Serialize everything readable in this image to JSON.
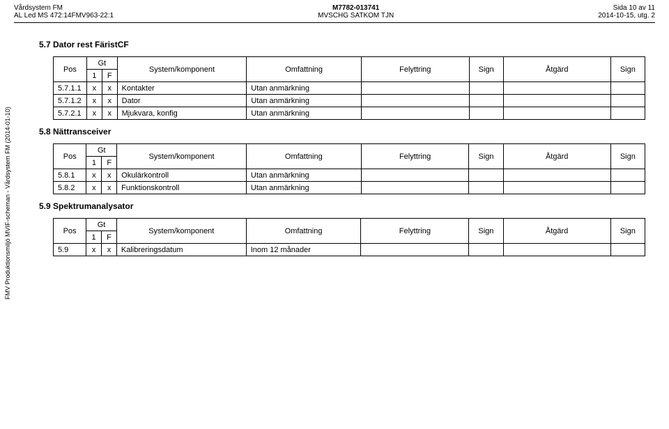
{
  "header": {
    "left1": "Vårdsystem FM",
    "left2": "AL Led MS 472:14FMV963-22:1",
    "center1": "M7782-013741",
    "center2": "MVSCHG SATKOM TJN",
    "right1": "Sida 10 av 11",
    "right2": "2014-10-15, utg. 2"
  },
  "sideText": "FMV Produktionsmiljö MVIF-scheman - Vårdsystem FM (2014-01-10)",
  "columns": {
    "pos": "Pos",
    "gt": "Gt",
    "gt1": "1",
    "gtF": "F",
    "sys": "System/komponent",
    "omf": "Omfattning",
    "fel": "Felyttring",
    "sign": "Sign",
    "atg": "Åtgärd",
    "sign2": "Sign"
  },
  "sections": [
    {
      "title": "5.7 Dator rest FäristCF",
      "rows": [
        {
          "pos": "5.7.1.1",
          "c1": "x",
          "cF": "x",
          "sys": "Kontakter",
          "omf": "Utan anmärkning",
          "fel": "",
          "sign": "",
          "atg": "",
          "sign2": ""
        },
        {
          "pos": "5.7.1.2",
          "c1": "x",
          "cF": "x",
          "sys": "Dator",
          "omf": "Utan anmärkning",
          "fel": "",
          "sign": "",
          "atg": "",
          "sign2": ""
        },
        {
          "pos": "5.7.2.1",
          "c1": "x",
          "cF": "x",
          "sys": "Mjukvara, konfig",
          "omf": "Utan anmärkning",
          "fel": "",
          "sign": "",
          "atg": "",
          "sign2": ""
        }
      ]
    },
    {
      "title": "5.8 Nättransceiver",
      "rows": [
        {
          "pos": "5.8.1",
          "c1": "x",
          "cF": "x",
          "sys": "Okulärkontroll",
          "omf": "Utan anmärkning",
          "fel": "",
          "sign": "",
          "atg": "",
          "sign2": ""
        },
        {
          "pos": "5.8.2",
          "c1": "x",
          "cF": "x",
          "sys": "Funktionskontroll",
          "omf": "Utan anmärkning",
          "fel": "",
          "sign": "",
          "atg": "",
          "sign2": ""
        }
      ]
    },
    {
      "title": "5.9 Spektrumanalysator",
      "rows": [
        {
          "pos": "5.9",
          "c1": "x",
          "cF": "x",
          "sys": "Kalibreringsdatum",
          "omf": "Inom 12 månader",
          "fel": "",
          "sign": "",
          "atg": "",
          "sign2": ""
        }
      ]
    }
  ]
}
